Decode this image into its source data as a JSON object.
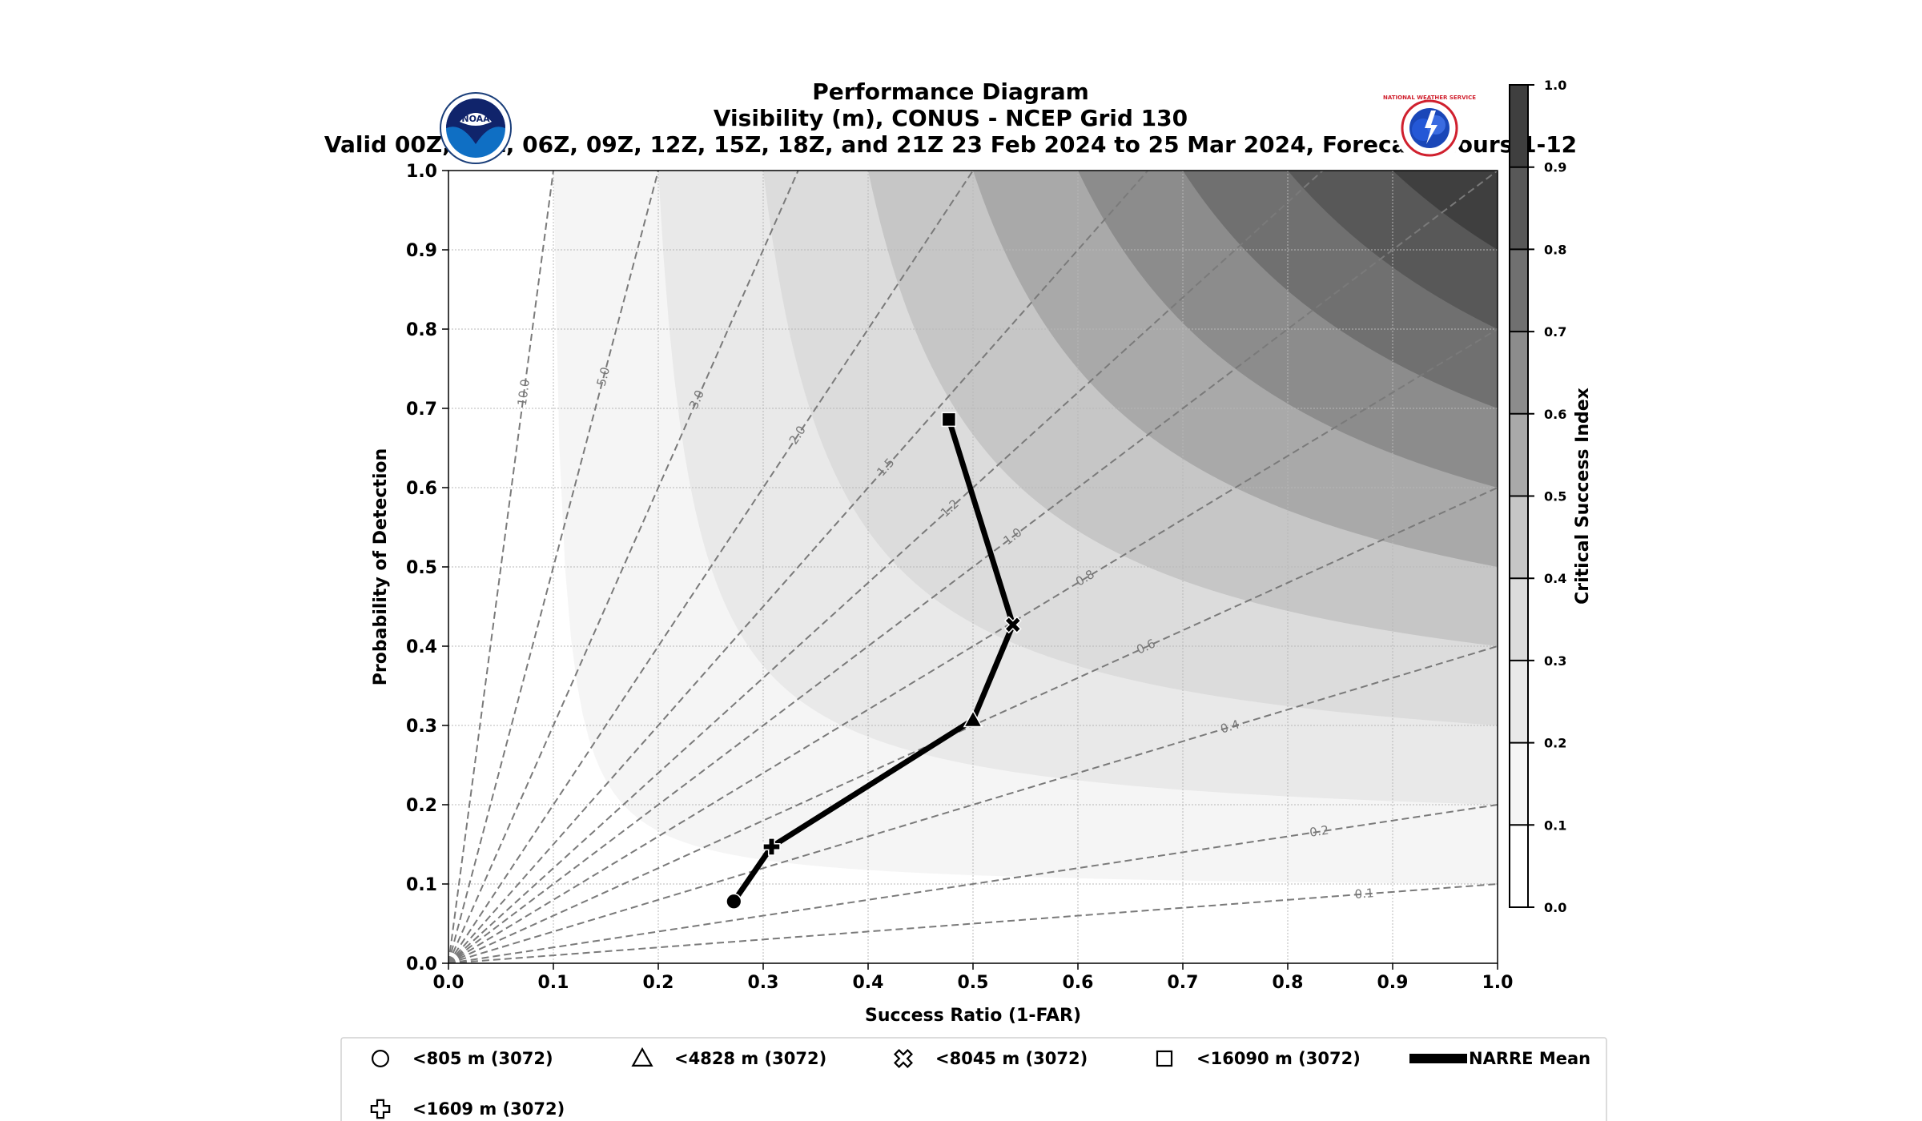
{
  "header": {
    "title_lines": [
      "Performance Diagram",
      "Visibility (m), CONUS - NCEP Grid 130",
      "Valid 00Z, 03Z, 06Z, 09Z, 12Z, 15Z, 18Z, and 21Z 23 Feb 2024 to 25 Mar 2024, Forecast Hours 1-12"
    ],
    "logos": [
      {
        "name": "noaa-logo",
        "text": "NOAA"
      },
      {
        "name": "nws-logo",
        "text": "NATIONAL WEATHER SERVICE"
      }
    ]
  },
  "chart_data": {
    "type": "scatter",
    "title": "Performance Diagram",
    "xlabel": "Success Ratio (1-FAR)",
    "ylabel": "Probability of Detection",
    "xlim": [
      0.0,
      1.0
    ],
    "ylim": [
      0.0,
      1.0
    ],
    "x_ticks": [
      "0.0",
      "0.1",
      "0.2",
      "0.3",
      "0.4",
      "0.5",
      "0.6",
      "0.7",
      "0.8",
      "0.9",
      "1.0"
    ],
    "y_ticks": [
      "0.0",
      "0.1",
      "0.2",
      "0.3",
      "0.4",
      "0.5",
      "0.6",
      "0.7",
      "0.8",
      "0.9",
      "1.0"
    ],
    "grid": true,
    "colorbar": {
      "label": "Critical Success Index",
      "ticks": [
        "0.0",
        "0.1",
        "0.2",
        "0.3",
        "0.4",
        "0.5",
        "0.6",
        "0.7",
        "0.8",
        "0.9",
        "1.0"
      ],
      "levels": [
        0.0,
        0.1,
        0.2,
        0.3,
        0.4,
        0.5,
        0.6,
        0.7,
        0.8,
        0.9,
        1.0
      ],
      "colors": [
        "#ffffff",
        "#f5f5f5",
        "#e9e9e9",
        "#dcdcdc",
        "#c6c6c6",
        "#a9a9a9",
        "#8c8c8c",
        "#707070",
        "#585858",
        "#3f3f3f"
      ]
    },
    "bias_lines": [
      {
        "value": 10.0,
        "label": "10.0"
      },
      {
        "value": 5.0,
        "label": "5.0"
      },
      {
        "value": 3.0,
        "label": "3.0"
      },
      {
        "value": 2.0,
        "label": "2.0"
      },
      {
        "value": 1.5,
        "label": "1.5"
      },
      {
        "value": 1.2,
        "label": "1.2"
      },
      {
        "value": 1.0,
        "label": "1.0"
      },
      {
        "value": 0.8,
        "label": "0.8"
      },
      {
        "value": 0.6,
        "label": "0.6"
      },
      {
        "value": 0.4,
        "label": "0.4"
      },
      {
        "value": 0.2,
        "label": "0.2"
      },
      {
        "value": 0.1,
        "label": "0.1"
      }
    ],
    "series": [
      {
        "name": "NARRE Mean",
        "points": [
          {
            "label": "<805 m (3072)",
            "marker": "circle",
            "x": 0.272,
            "y": 0.078
          },
          {
            "label": "<1609 m (3072)",
            "marker": "plus",
            "x": 0.308,
            "y": 0.147
          },
          {
            "label": "<4828 m (3072)",
            "marker": "triangle",
            "x": 0.5,
            "y": 0.307
          },
          {
            "label": "<8045 m (3072)",
            "marker": "x",
            "x": 0.538,
            "y": 0.427
          },
          {
            "label": "<16090 m (3072)",
            "marker": "square",
            "x": 0.477,
            "y": 0.686
          }
        ]
      }
    ],
    "legend": {
      "placement": "bottom",
      "entries": [
        {
          "label": "<805 m (3072)",
          "marker": "circle"
        },
        {
          "label": "<4828 m (3072)",
          "marker": "triangle"
        },
        {
          "label": "<8045 m (3072)",
          "marker": "x"
        },
        {
          "label": "<16090 m (3072)",
          "marker": "square"
        },
        {
          "label": "NARRE Mean",
          "marker": "line"
        },
        {
          "label": "<1609 m (3072)",
          "marker": "plus"
        }
      ]
    }
  }
}
